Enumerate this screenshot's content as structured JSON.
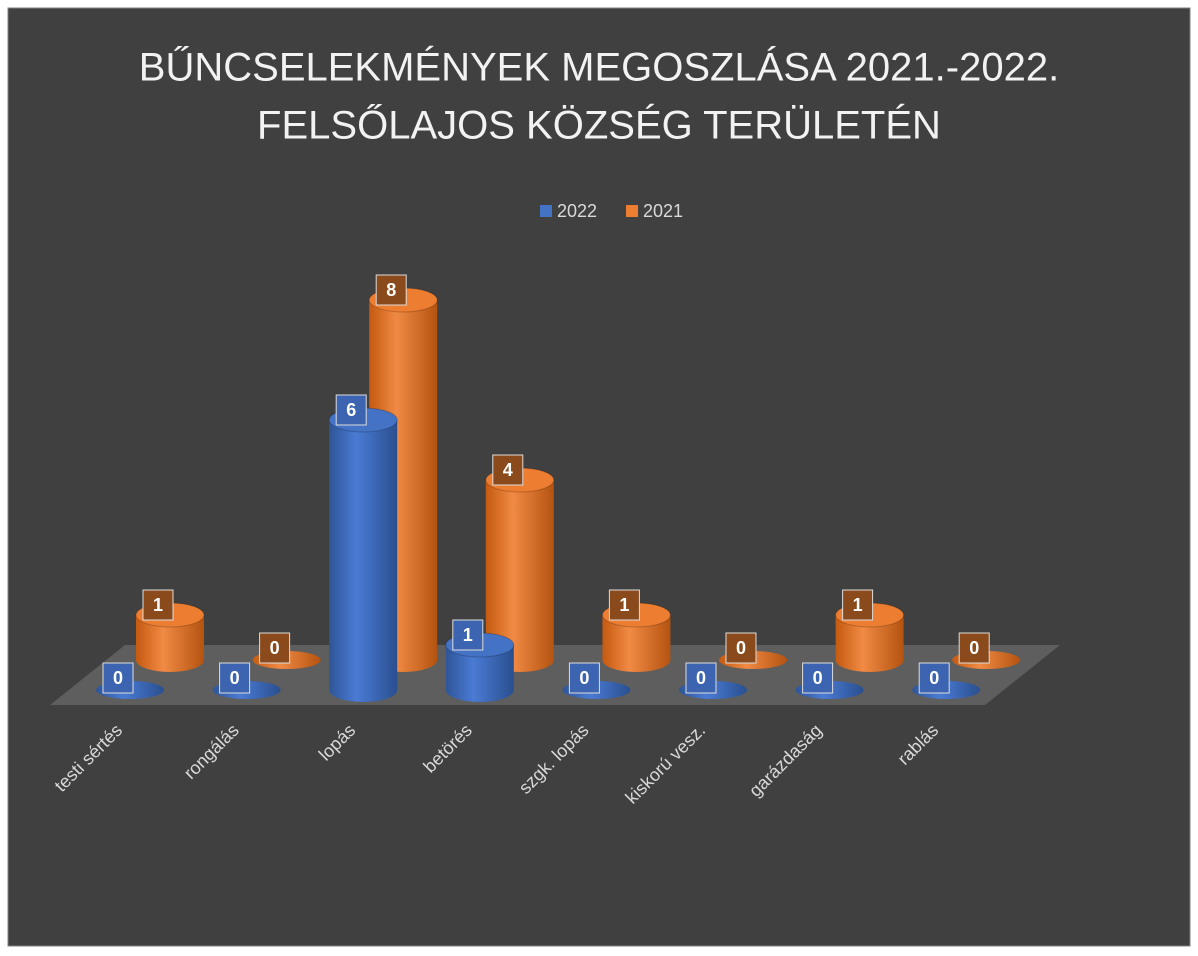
{
  "chart_data": {
    "type": "bar3d",
    "title": [
      "BŰNCSELEKMÉNYEK MEGOSZLÁSA 2021.-2022.",
      "FELSŐLAJOS KÖZSÉG TERÜLETÉN"
    ],
    "categories": [
      "testi sértés",
      "rongálás",
      "lopás",
      "betörés",
      "szgk. lopás",
      "kiskorú vesz.",
      "garázdaság",
      "rablás"
    ],
    "series": [
      {
        "name": "2022",
        "color": "#4472c4",
        "values": [
          0,
          0,
          6,
          1,
          0,
          0,
          0,
          0
        ]
      },
      {
        "name": "2021",
        "color": "#ed7d31",
        "values": [
          1,
          0,
          8,
          4,
          1,
          0,
          1,
          0
        ]
      }
    ]
  }
}
